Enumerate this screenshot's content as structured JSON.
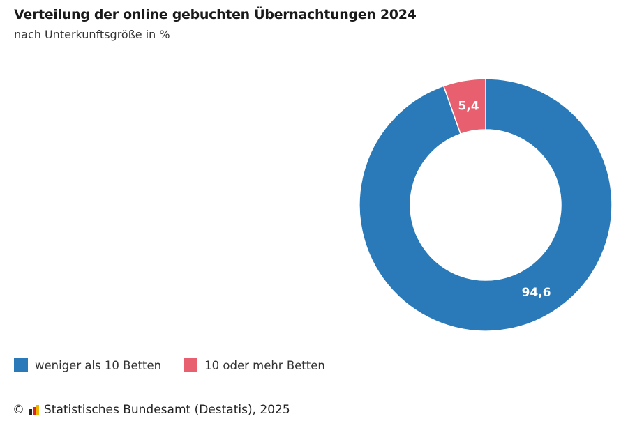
{
  "chart_data": {
    "type": "pie",
    "variant": "donut",
    "title": "Verteilung der online gebuchten Übernachtungen 2024",
    "subtitle": "nach Unterkunftsgröße in %",
    "categories": [
      "weniger als 10 Betten",
      "10 oder mehr Betten"
    ],
    "values": [
      94.6,
      5.4
    ],
    "value_labels": [
      "94,6",
      "5,4"
    ],
    "colors": [
      "#2a7ab9",
      "#e8606f"
    ],
    "legend_placement": "bottom-left"
  },
  "source": {
    "copyright": "©",
    "text": "Statistisches Bundesamt (Destatis), 2025"
  }
}
